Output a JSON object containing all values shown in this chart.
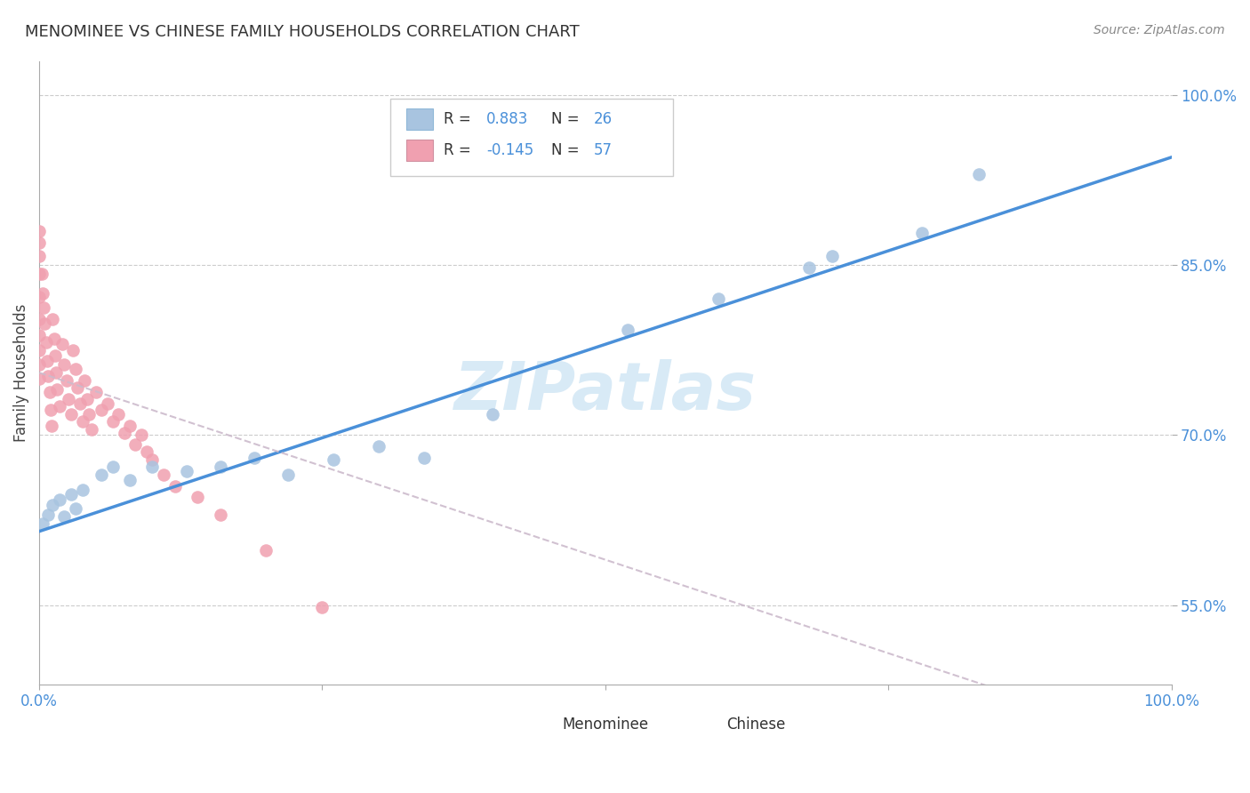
{
  "title": "MENOMINEE VS CHINESE FAMILY HOUSEHOLDS CORRELATION CHART",
  "source_text": "Source: ZipAtlas.com",
  "ylabel": "Family Households",
  "xlim": [
    0.0,
    1.0
  ],
  "ylim": [
    0.48,
    1.03
  ],
  "yticks": [
    0.55,
    0.7,
    0.85,
    1.0
  ],
  "ytick_labels": [
    "55.0%",
    "70.0%",
    "85.0%",
    "100.0%"
  ],
  "xticks": [
    0.0,
    0.25,
    0.5,
    0.75,
    1.0
  ],
  "xtick_labels": [
    "0.0%",
    "",
    "",
    "",
    "100.0%"
  ],
  "menominee_R": 0.883,
  "menominee_N": 26,
  "chinese_R": -0.145,
  "chinese_N": 57,
  "menominee_color": "#a8c4e0",
  "menominee_line_color": "#4a90d9",
  "chinese_color": "#f0a0b0",
  "chinese_line_color": "#e05070",
  "background_color": "#ffffff",
  "slope_men": 0.33,
  "intercept_men": 0.615,
  "slope_chi": -0.33,
  "intercept_chi": 0.755,
  "menominee_x": [
    0.003,
    0.008,
    0.012,
    0.018,
    0.022,
    0.028,
    0.032,
    0.038,
    0.055,
    0.065,
    0.08,
    0.1,
    0.13,
    0.16,
    0.19,
    0.22,
    0.26,
    0.3,
    0.34,
    0.4,
    0.52,
    0.6,
    0.68,
    0.7,
    0.78,
    0.83
  ],
  "menominee_y": [
    0.622,
    0.63,
    0.638,
    0.643,
    0.628,
    0.648,
    0.635,
    0.652,
    0.665,
    0.672,
    0.66,
    0.672,
    0.668,
    0.672,
    0.68,
    0.665,
    0.678,
    0.69,
    0.68,
    0.718,
    0.793,
    0.82,
    0.848,
    0.858,
    0.878,
    0.93
  ],
  "chinese_x": [
    0.0,
    0.0,
    0.0,
    0.0,
    0.0,
    0.0,
    0.0,
    0.0,
    0.0,
    0.0,
    0.002,
    0.003,
    0.004,
    0.005,
    0.006,
    0.007,
    0.008,
    0.009,
    0.01,
    0.011,
    0.012,
    0.013,
    0.014,
    0.015,
    0.016,
    0.018,
    0.02,
    0.022,
    0.024,
    0.026,
    0.028,
    0.03,
    0.032,
    0.034,
    0.036,
    0.038,
    0.04,
    0.042,
    0.044,
    0.046,
    0.05,
    0.055,
    0.06,
    0.065,
    0.07,
    0.075,
    0.08,
    0.085,
    0.09,
    0.095,
    0.1,
    0.11,
    0.12,
    0.14,
    0.16,
    0.2,
    0.25
  ],
  "chinese_y": [
    0.88,
    0.87,
    0.858,
    0.842,
    0.822,
    0.802,
    0.788,
    0.775,
    0.762,
    0.75,
    0.842,
    0.825,
    0.812,
    0.798,
    0.782,
    0.765,
    0.752,
    0.738,
    0.722,
    0.708,
    0.802,
    0.785,
    0.77,
    0.755,
    0.74,
    0.725,
    0.78,
    0.762,
    0.748,
    0.732,
    0.718,
    0.775,
    0.758,
    0.742,
    0.728,
    0.712,
    0.748,
    0.732,
    0.718,
    0.705,
    0.738,
    0.722,
    0.728,
    0.712,
    0.718,
    0.702,
    0.708,
    0.692,
    0.7,
    0.685,
    0.678,
    0.665,
    0.655,
    0.645,
    0.63,
    0.598,
    0.548
  ]
}
